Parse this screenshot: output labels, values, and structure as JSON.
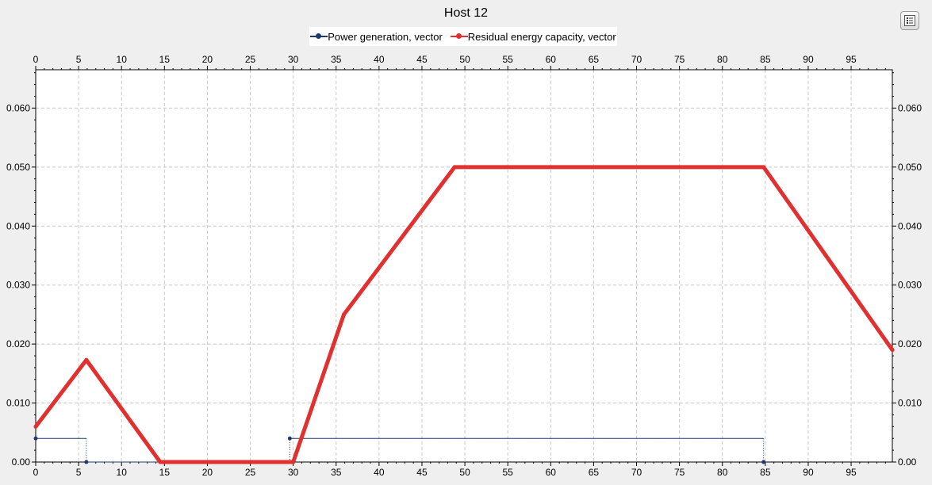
{
  "window": {
    "title": "Host 12"
  },
  "toolbar": {
    "options_icon": "list-options-icon"
  },
  "colors": {
    "background": "#efefef",
    "plot_background": "#ffffff",
    "grid": "#c8c8c8",
    "power_series": "#1f3a6e",
    "residual_series": "#e03030"
  },
  "chart_data": {
    "type": "line",
    "title": "Host 12",
    "xlabel": "",
    "ylabel": "",
    "xlim": [
      0,
      99.8
    ],
    "ylim": [
      0,
      0.0665
    ],
    "x_ticks": [
      "0",
      "5",
      "10",
      "15",
      "20",
      "25",
      "30",
      "35",
      "40",
      "45",
      "50",
      "55",
      "60",
      "65",
      "70",
      "75",
      "80",
      "85",
      "90",
      "95"
    ],
    "y_ticks": [
      "0.00",
      "0.010",
      "0.020",
      "0.030",
      "0.040",
      "0.050",
      "0.060"
    ],
    "grid": true,
    "legend_position": "top-center",
    "series": [
      {
        "name": "Power generation, vector",
        "style": "sample-hold",
        "x": [
          0,
          5.9,
          29.6,
          84.8
        ],
        "y": [
          0.004,
          0,
          0.004,
          0
        ]
      },
      {
        "name": "Residual energy capacity, vector",
        "style": "line",
        "x": [
          0,
          5.9,
          14.5,
          29.6,
          30.0,
          35.9,
          48.8,
          84.8,
          99.8
        ],
        "y": [
          0.006,
          0.0173,
          0,
          0,
          0,
          0.025,
          0.05,
          0.05,
          0.019
        ]
      }
    ]
  }
}
